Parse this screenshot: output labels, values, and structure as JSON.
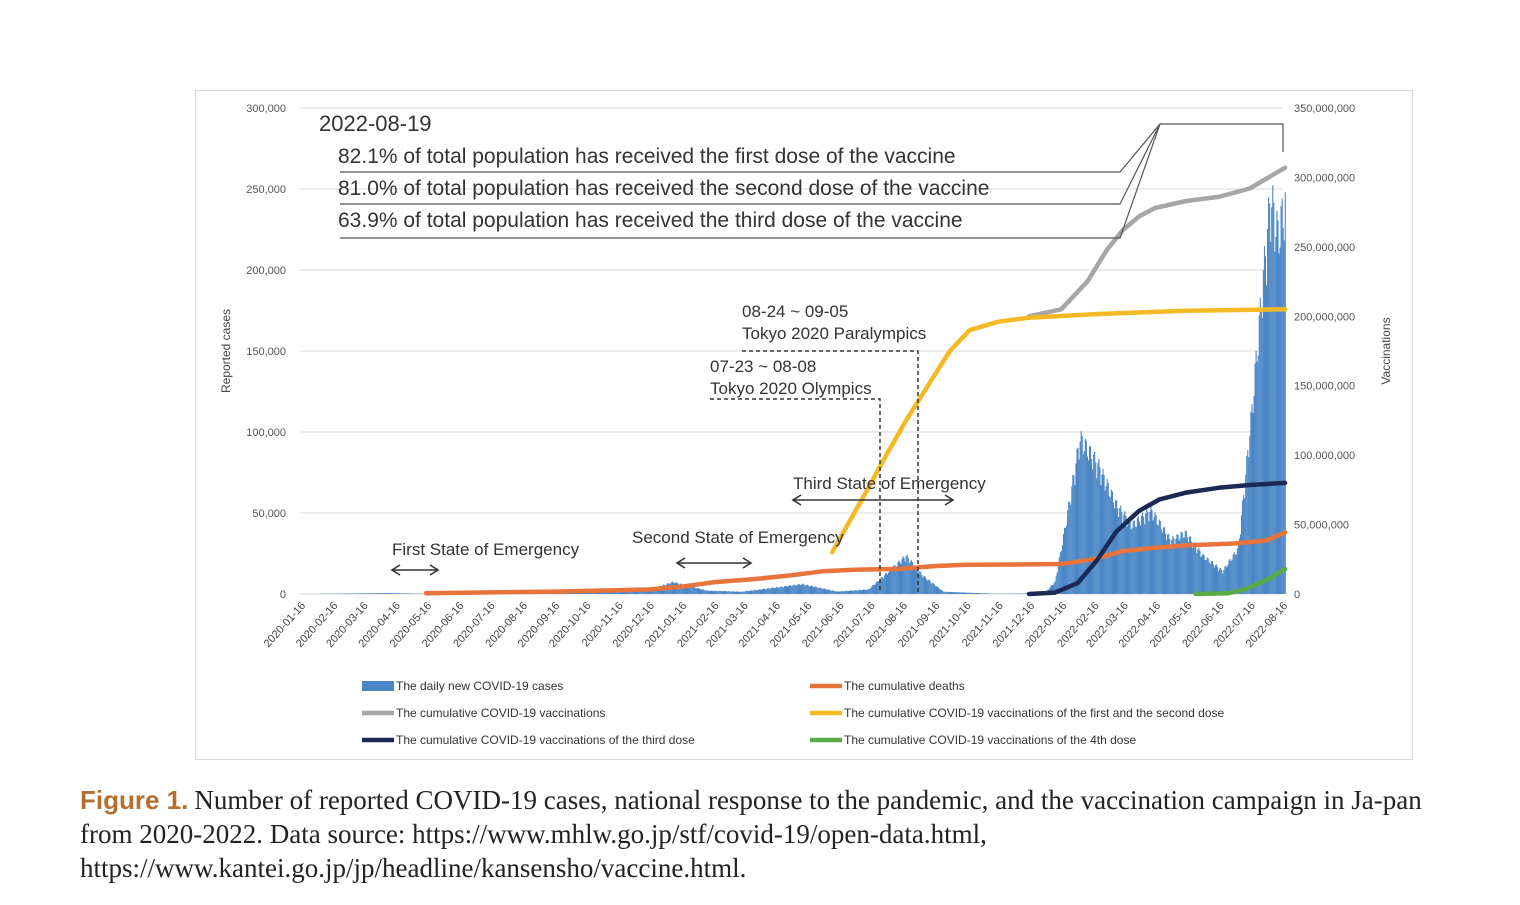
{
  "chart_data": {
    "type": "bar",
    "ylabel": "Reported cases",
    "y2label": "Vaccinations",
    "ylim": [
      0,
      300000
    ],
    "y2lim": [
      0,
      350000000
    ],
    "yticks": [
      "0",
      "50,000",
      "100,000",
      "150,000",
      "200,000",
      "250,000",
      "300,000"
    ],
    "y2ticks": [
      "0",
      "50,000,000",
      "100,000,000",
      "150,000,000",
      "200,000,000",
      "250,000,000",
      "300,000,000",
      "350,000,000"
    ],
    "xticks": [
      "2020-01-16",
      "2020-02-16",
      "2020-03-16",
      "2020-04-16",
      "2020-05-16",
      "2020-06-16",
      "2020-07-16",
      "2020-08-16",
      "2020-09-16",
      "2020-10-16",
      "2020-11-16",
      "2020-12-16",
      "2021-01-16",
      "2021-02-16",
      "2021-03-16",
      "2021-04-16",
      "2021-05-16",
      "2021-06-16",
      "2021-07-16",
      "2021-08-16",
      "2021-09-16",
      "2021-10-16",
      "2021-11-16",
      "2021-12-16",
      "2022-01-16",
      "2022-02-16",
      "2022-03-16",
      "2022-04-16",
      "2022-05-16",
      "2022-06-16",
      "2022-07-16",
      "2022-08-16"
    ],
    "grid": true,
    "legend_position": "bottom",
    "series": [
      {
        "name": "The daily new COVID-19 cases",
        "type": "bar",
        "axis": "left",
        "color": "#4a86c5",
        "points": [
          [
            "2020-01-16",
            0
          ],
          [
            "2020-04-10",
            600
          ],
          [
            "2020-05-20",
            80
          ],
          [
            "2020-07-15",
            800
          ],
          [
            "2020-08-06",
            1500
          ],
          [
            "2020-09-15",
            500
          ],
          [
            "2020-11-15",
            2000
          ],
          [
            "2020-12-20",
            3500
          ],
          [
            "2021-01-08",
            7800
          ],
          [
            "2021-02-10",
            2200
          ],
          [
            "2021-03-15",
            1500
          ],
          [
            "2021-04-20",
            4500
          ],
          [
            "2021-05-12",
            6500
          ],
          [
            "2021-06-15",
            1600
          ],
          [
            "2021-07-15",
            3000
          ],
          [
            "2021-08-20",
            25000
          ],
          [
            "2021-09-05",
            12000
          ],
          [
            "2021-09-25",
            1500
          ],
          [
            "2021-11-15",
            150
          ],
          [
            "2021-12-31",
            500
          ],
          [
            "2022-01-10",
            8000
          ],
          [
            "2022-01-20",
            45000
          ],
          [
            "2022-02-03",
            102000
          ],
          [
            "2022-02-20",
            85000
          ],
          [
            "2022-03-10",
            58000
          ],
          [
            "2022-03-25",
            45000
          ],
          [
            "2022-04-12",
            55000
          ],
          [
            "2022-05-01",
            35000
          ],
          [
            "2022-05-15",
            40000
          ],
          [
            "2022-06-01",
            25000
          ],
          [
            "2022-06-20",
            15000
          ],
          [
            "2022-07-05",
            30000
          ],
          [
            "2022-07-18",
            120000
          ],
          [
            "2022-07-28",
            200000
          ],
          [
            "2022-08-05",
            260000
          ],
          [
            "2022-08-12",
            235000
          ],
          [
            "2022-08-19",
            255000
          ]
        ]
      },
      {
        "name": "The cumulative deaths",
        "type": "line",
        "axis": "left",
        "color": "#e8743b",
        "points": [
          [
            "2020-05-16",
            500
          ],
          [
            "2020-09-16",
            1500
          ],
          [
            "2020-12-16",
            2800
          ],
          [
            "2021-01-16",
            4500
          ],
          [
            "2021-02-16",
            7200
          ],
          [
            "2021-04-01",
            9500
          ],
          [
            "2021-05-01",
            11500
          ],
          [
            "2021-06-01",
            14000
          ],
          [
            "2021-07-01",
            15000
          ],
          [
            "2021-08-16",
            15600
          ],
          [
            "2021-09-16",
            17200
          ],
          [
            "2021-10-16",
            18000
          ],
          [
            "2021-12-16",
            18300
          ],
          [
            "2022-01-16",
            18500
          ],
          [
            "2022-02-16",
            21500
          ],
          [
            "2022-03-16",
            26500
          ],
          [
            "2022-04-16",
            28500
          ],
          [
            "2022-05-16",
            30000
          ],
          [
            "2022-07-01",
            31200
          ],
          [
            "2022-08-01",
            33000
          ],
          [
            "2022-08-19",
            38000
          ]
        ]
      },
      {
        "name": "The cumulative COVID-19 vaccinations",
        "type": "line",
        "axis": "right",
        "color": "#a6a6a6",
        "points": [
          [
            "2021-12-16",
            200000000
          ],
          [
            "2022-01-16",
            205000000
          ],
          [
            "2022-02-10",
            225000000
          ],
          [
            "2022-03-01",
            248000000
          ],
          [
            "2022-03-16",
            262000000
          ],
          [
            "2022-04-01",
            272000000
          ],
          [
            "2022-04-16",
            278000000
          ],
          [
            "2022-05-16",
            283000000
          ],
          [
            "2022-06-16",
            286000000
          ],
          [
            "2022-07-16",
            292000000
          ],
          [
            "2022-08-19",
            307000000
          ]
        ]
      },
      {
        "name": "The cumulative COVID-19 vaccinations of the first and the second dose",
        "type": "line",
        "axis": "right",
        "color": "#f5b923",
        "points": [
          [
            "2021-06-10",
            30000000
          ],
          [
            "2021-07-10",
            70000000
          ],
          [
            "2021-08-01",
            100000000
          ],
          [
            "2021-08-20",
            125000000
          ],
          [
            "2021-09-10",
            150000000
          ],
          [
            "2021-10-01",
            175000000
          ],
          [
            "2021-10-20",
            190000000
          ],
          [
            "2021-11-16",
            196000000
          ],
          [
            "2021-12-16",
            199000000
          ],
          [
            "2022-02-16",
            201500000
          ],
          [
            "2022-05-16",
            204000000
          ],
          [
            "2022-08-19",
            205000000
          ]
        ]
      },
      {
        "name": "The cumulative COVID-19 vaccinations of the third dose",
        "type": "line",
        "axis": "right",
        "color": "#1b2a55",
        "points": [
          [
            "2021-12-16",
            0
          ],
          [
            "2022-01-10",
            1000000
          ],
          [
            "2022-02-01",
            8000000
          ],
          [
            "2022-02-20",
            25000000
          ],
          [
            "2022-03-10",
            45000000
          ],
          [
            "2022-04-01",
            60000000
          ],
          [
            "2022-04-20",
            68000000
          ],
          [
            "2022-05-16",
            73000000
          ],
          [
            "2022-06-16",
            76500000
          ],
          [
            "2022-07-16",
            78500000
          ],
          [
            "2022-08-19",
            80000000
          ]
        ]
      },
      {
        "name": "The cumulative COVID-19 vaccinations of the 4th dose",
        "type": "line",
        "axis": "right",
        "color": "#5aaa46",
        "points": [
          [
            "2022-05-25",
            0
          ],
          [
            "2022-06-25",
            500000
          ],
          [
            "2022-07-10",
            3000000
          ],
          [
            "2022-08-01",
            10000000
          ],
          [
            "2022-08-19",
            18000000
          ]
        ]
      }
    ],
    "annotations": {
      "date": "2022-08-19",
      "first_dose": "82.1% of total population has received the first dose of the vaccine",
      "second_dose": "81.0% of total population has received the second dose of the vaccine",
      "third_dose": "63.9% of total population has received the third dose of the vaccine",
      "paralympics_dates": "08-24 ~ 09-05",
      "paralympics_name": "Tokyo 2020 Paralympics",
      "olympics_dates": "07-23 ~ 08-08",
      "olympics_name": "Tokyo 2020 Olympics",
      "first_emergency": "First State of Emergency",
      "second_emergency": "Second State of Emergency",
      "third_emergency": "Third State of Emergency"
    }
  },
  "caption": {
    "label": "Figure 1.",
    "text": "Number of reported COVID-19 cases, national response to the pandemic, and the vaccination campaign in Ja-pan from 2020-2022. Data source: https://www.mhlw.go.jp/stf/covid-19/open-data.html, https://www.kantei.go.jp/jp/headline/kansensho/vaccine.html."
  }
}
